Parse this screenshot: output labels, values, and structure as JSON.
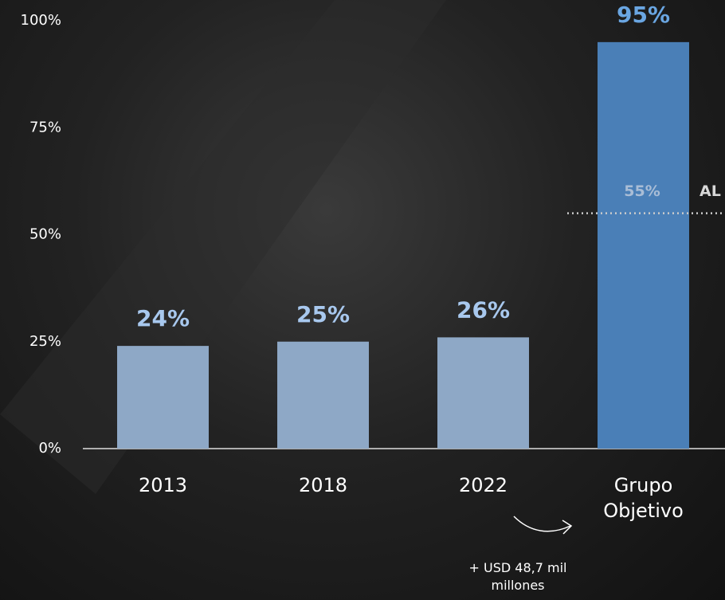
{
  "chart_data": {
    "type": "bar",
    "categories": [
      "2013",
      "2018",
      "2022",
      "Grupo Objetivo"
    ],
    "values": [
      24,
      25,
      26,
      95
    ],
    "value_labels": [
      "24%",
      "25%",
      "26%",
      "95%"
    ],
    "colors": [
      "#8ea8c6",
      "#8ea8c6",
      "#8ea8c6",
      "#4a7fb7"
    ],
    "label_colors": [
      "#a8c8ee",
      "#a8c8ee",
      "#a8c8ee",
      "#6aa6e2"
    ],
    "ylim": [
      0,
      100
    ],
    "yticks": [
      {
        "value": 0,
        "label": "0%"
      },
      {
        "value": 25,
        "label": "25%"
      },
      {
        "value": 50,
        "label": "50%"
      },
      {
        "value": 75,
        "label": "75%"
      },
      {
        "value": 100,
        "label": "100%"
      }
    ],
    "reference_line": {
      "value": 55,
      "label": "55%",
      "text": "AL"
    },
    "annotation": "+ USD 48,7 mil millones"
  }
}
